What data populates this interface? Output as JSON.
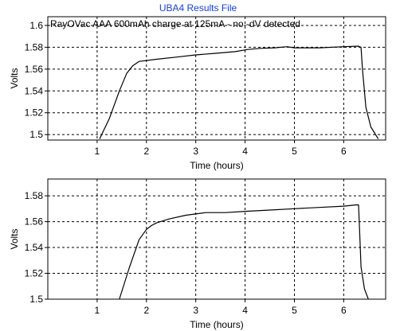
{
  "window": {
    "title": "UBA4 Results File"
  },
  "colors": {
    "title": "#1a3fd6",
    "line": "#000000",
    "grid": "#000000"
  },
  "chart_data": [
    {
      "type": "line",
      "title": "",
      "annotation": "RayOVac AAA 600mAh charge at 125mA - no -dV detected",
      "xlabel": "Time (hours)",
      "ylabel": "Volts",
      "xlim": [
        0,
        6.85
      ],
      "ylim": [
        1.495,
        1.608
      ],
      "xticks": [
        1,
        2,
        3,
        4,
        5,
        6
      ],
      "yticks": [
        1.5,
        1.52,
        1.54,
        1.56,
        1.58,
        1.6
      ],
      "ytick_labels": [
        "1.5",
        "1.52",
        "1.54",
        "1.56",
        "1.58",
        "1.6"
      ],
      "grid": true,
      "series": [
        {
          "name": "",
          "x": [
            1.05,
            1.25,
            1.45,
            1.6,
            1.72,
            1.85,
            2.2,
            2.6,
            3.0,
            3.4,
            3.8,
            4.05,
            4.3,
            4.6,
            4.85,
            5.0,
            5.5,
            6.0,
            6.3,
            6.35,
            6.38,
            6.45,
            6.55,
            6.7
          ],
          "y": [
            1.496,
            1.515,
            1.54,
            1.556,
            1.563,
            1.567,
            1.569,
            1.571,
            1.573,
            1.5745,
            1.576,
            1.578,
            1.579,
            1.5795,
            1.5805,
            1.5795,
            1.5795,
            1.5805,
            1.581,
            1.58,
            1.56,
            1.525,
            1.507,
            1.496
          ]
        }
      ]
    },
    {
      "type": "line",
      "title": "",
      "xlabel": "Time (hours)",
      "ylabel": "Volts",
      "xlim": [
        0,
        6.85
      ],
      "ylim": [
        1.5,
        1.593
      ],
      "xticks": [
        1,
        2,
        3,
        4,
        5,
        6
      ],
      "yticks": [
        1.5,
        1.52,
        1.54,
        1.56,
        1.58
      ],
      "ytick_labels": [
        "1.5",
        "1.52",
        "1.54",
        "1.56",
        "1.58"
      ],
      "grid": true,
      "series": [
        {
          "name": "",
          "x": [
            1.45,
            1.65,
            1.85,
            2.0,
            2.1,
            2.2,
            2.45,
            2.8,
            3.2,
            3.6,
            4.0,
            4.5,
            5.0,
            5.5,
            6.0,
            6.25,
            6.3,
            6.32,
            6.35,
            6.42,
            6.5
          ],
          "y": [
            1.5,
            1.524,
            1.546,
            1.554,
            1.557,
            1.559,
            1.562,
            1.565,
            1.567,
            1.567,
            1.568,
            1.569,
            1.57,
            1.571,
            1.572,
            1.573,
            1.573,
            1.555,
            1.525,
            1.508,
            1.5
          ]
        }
      ]
    }
  ]
}
